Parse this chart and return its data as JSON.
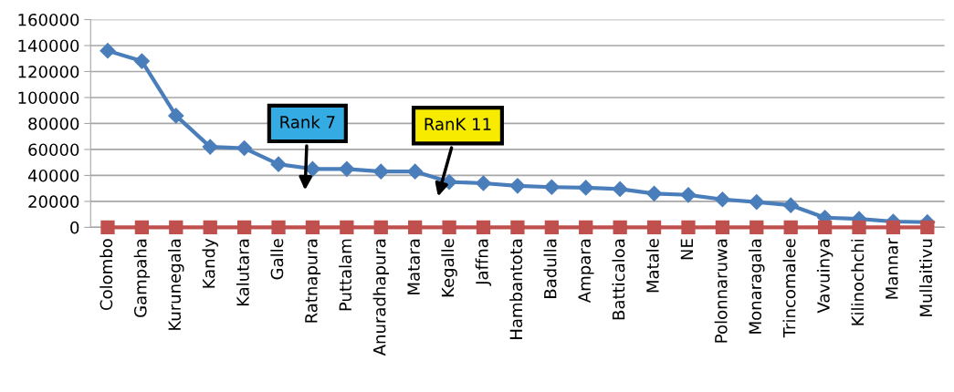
{
  "chart_data": {
    "type": "line",
    "categories": [
      "Colombo",
      "Gampaha",
      "Kurunegala",
      "Kandy",
      "Kalutara",
      "Galle",
      "Ratnapura",
      "Puttalam",
      "Anuradhapura",
      "Matara",
      "Kegalle",
      "Jaffna",
      "Hambantota",
      "Badulla",
      "Ampara",
      "Batticaloa",
      "Matale",
      "NE",
      "Polonnaruwa",
      "Monaragala",
      "Trincomalee",
      "Vavuinya",
      "Kilinochchi",
      "Mannar",
      "Mullaitivu"
    ],
    "series": [
      {
        "color": "#4a7ebb",
        "marker": "diamond",
        "values": [
          136000,
          128000,
          86000,
          62000,
          61000,
          48600,
          45000,
          45000,
          43000,
          43000,
          35000,
          34000,
          32000,
          31000,
          30500,
          29500,
          26000,
          25000,
          21500,
          19500,
          17000,
          7500,
          6500,
          4500,
          4000
        ]
      },
      {
        "color": "#c0504d",
        "marker": "square",
        "values": [
          0,
          0,
          0,
          0,
          0,
          0,
          0,
          0,
          0,
          0,
          0,
          0,
          0,
          0,
          0,
          0,
          0,
          0,
          0,
          0,
          0,
          0,
          0,
          0,
          0
        ]
      }
    ],
    "ylim": [
      0,
      160000
    ],
    "yticks": [
      0,
      20000,
      40000,
      60000,
      80000,
      100000,
      120000,
      140000,
      160000
    ],
    "grid": "y",
    "legend": false,
    "annotations": [
      "Rank 7",
      "RanK 11"
    ]
  }
}
